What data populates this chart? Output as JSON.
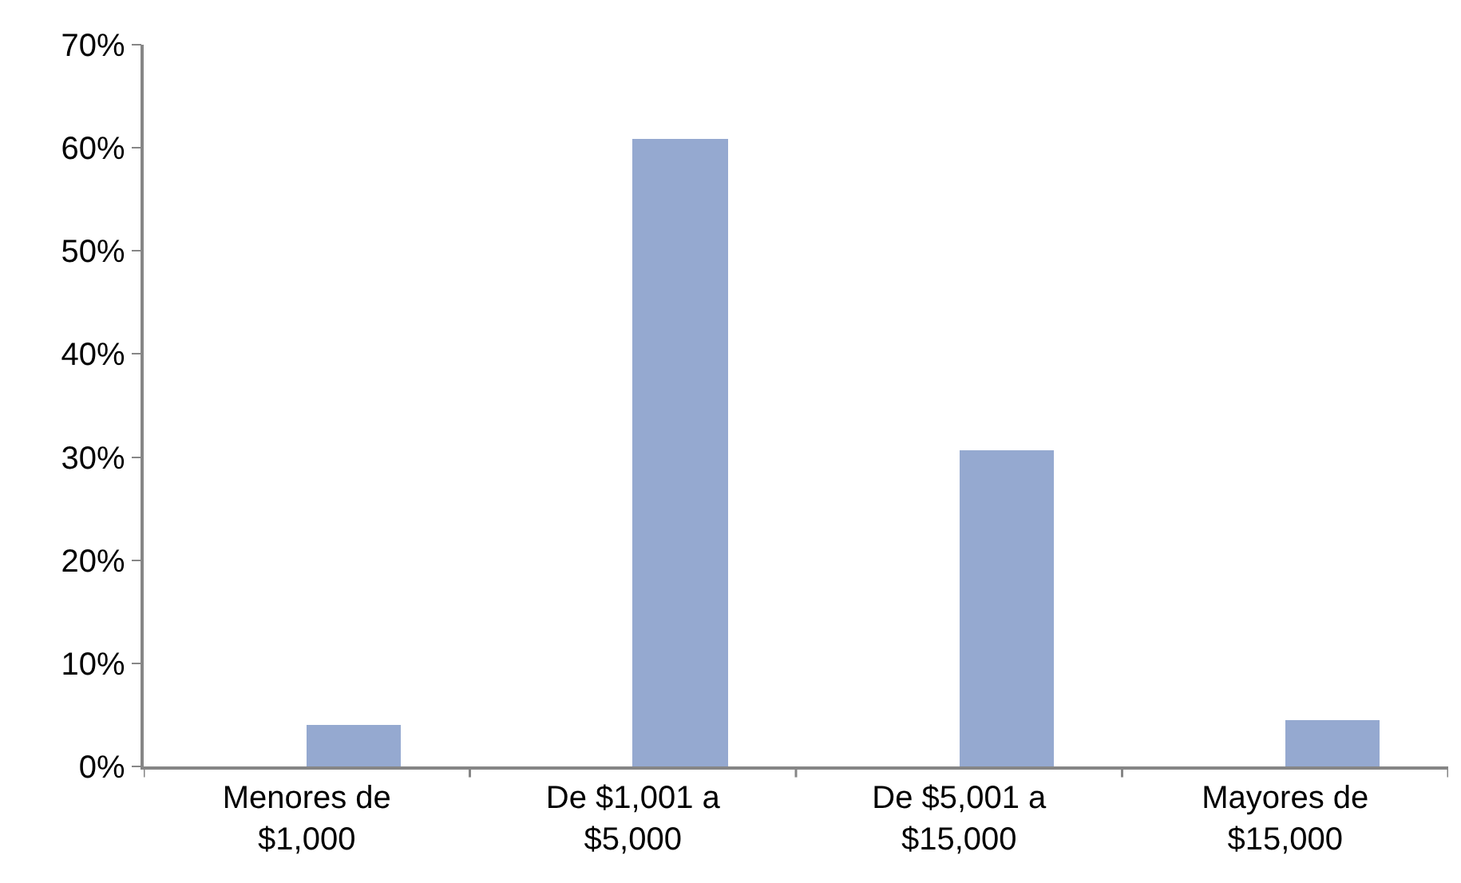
{
  "chart_data": {
    "type": "bar",
    "categories": [
      "Menores de $1,000",
      "De $1,001 a $5,000",
      "De $5,001 a $15,000",
      "Mayores de $15,000"
    ],
    "values": [
      4.0,
      60.8,
      30.6,
      4.5
    ],
    "color": "#95a9d0",
    "ylim": [
      0,
      70
    ],
    "yticks": [
      {
        "value": 0,
        "label": "0%"
      },
      {
        "value": 10,
        "label": "10%"
      },
      {
        "value": 20,
        "label": "20%"
      },
      {
        "value": 30,
        "label": "30%"
      },
      {
        "value": 40,
        "label": "40%"
      },
      {
        "value": 50,
        "label": "50%"
      },
      {
        "value": 60,
        "label": "60%"
      },
      {
        "value": 70,
        "label": "70%"
      }
    ],
    "grid": false
  }
}
